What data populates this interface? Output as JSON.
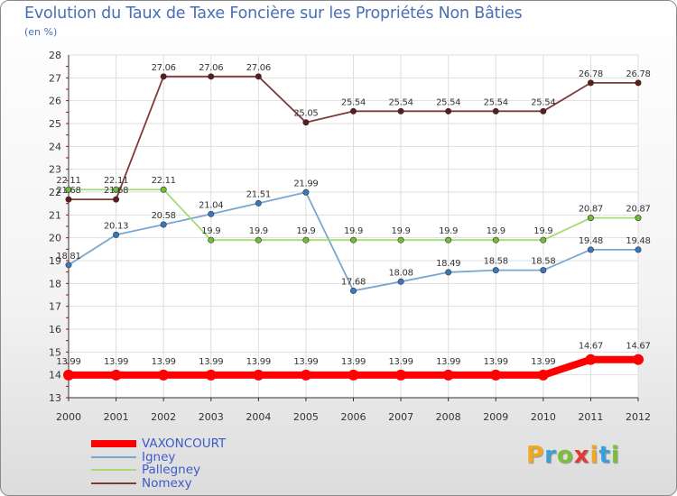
{
  "header": {
    "title": "Evolution du Taux de Taxe Foncière sur les Propriétés Non Bâties",
    "unit": "(en %)"
  },
  "logo": {
    "text": "Proxiti",
    "letters": [
      "P",
      "r",
      "o",
      "x",
      "i",
      "t",
      "i"
    ],
    "colors": [
      "#f2a81d",
      "#3aa0d8",
      "#7bbf3b",
      "#e53935",
      "#f2a81d",
      "#3aa0d8",
      "#7bbf3b"
    ]
  },
  "chart_data": {
    "type": "line",
    "title": "Evolution du Taux de Taxe Foncière sur les Propriétés Non Bâties",
    "ylabel": "(en %)",
    "xlabel": "",
    "categories": [
      "2000",
      "2001",
      "2002",
      "2003",
      "2004",
      "2005",
      "2006",
      "2007",
      "2008",
      "2009",
      "2010",
      "2011",
      "2012"
    ],
    "ylim": [
      13,
      28
    ],
    "yticks": [
      "13",
      "14",
      "15",
      "16",
      "17",
      "18",
      "19",
      "20",
      "21",
      "22",
      "23",
      "24",
      "25",
      "26",
      "27",
      "28"
    ],
    "grid": true,
    "series": [
      {
        "name": "VAXONCOURT",
        "color": "#ff0000",
        "marker": "#ff0000",
        "weight": "thick",
        "values": [
          13.99,
          13.99,
          13.99,
          13.99,
          13.99,
          13.99,
          13.99,
          13.99,
          13.99,
          13.99,
          13.99,
          14.67,
          14.67
        ],
        "labels": [
          "13.99",
          "13.99",
          "13.99",
          "13.99",
          "13.99",
          "13.99",
          "13.99",
          "13.99",
          "13.99",
          "13.99",
          "13.99",
          "14.67",
          "14.67"
        ]
      },
      {
        "name": "Igney",
        "color": "#7aa7cf",
        "marker": "#3a78bd",
        "weight": "thin",
        "values": [
          18.81,
          20.13,
          20.58,
          21.04,
          21.51,
          21.99,
          17.68,
          18.08,
          18.49,
          18.58,
          18.58,
          19.48,
          19.48
        ],
        "labels": [
          "18.81",
          "20.13",
          "20.58",
          "21.04",
          "21.51",
          "21.99",
          "17.68",
          "18.08",
          "18.49",
          "18.58",
          "18.58",
          "19.48",
          "19.48"
        ]
      },
      {
        "name": "Pallegney",
        "color": "#a3dc74",
        "marker": "#6fbe3a",
        "weight": "thin",
        "values": [
          22.11,
          22.11,
          22.11,
          19.9,
          19.9,
          19.9,
          19.9,
          19.9,
          19.9,
          19.9,
          19.9,
          20.87,
          20.87
        ],
        "labels": [
          "22.11",
          "22.11",
          "22.11",
          "19.9",
          "19.9",
          "19.9",
          "19.9",
          "19.9",
          "19.9",
          "19.9",
          "19.9",
          "20.87",
          "20.87"
        ]
      },
      {
        "name": "Nomexy",
        "color": "#7f3a3a",
        "marker": "#5c1c1c",
        "weight": "thin",
        "values": [
          21.68,
          21.68,
          27.06,
          27.06,
          27.06,
          25.05,
          25.54,
          25.54,
          25.54,
          25.54,
          25.54,
          26.78,
          26.78
        ],
        "labels": [
          "21.68",
          "21.68",
          "27.06",
          "27.06",
          "27.06",
          "25.05",
          "25.54",
          "25.54",
          "25.54",
          "25.54",
          "25.54",
          "26.78",
          "26.78"
        ]
      }
    ]
  }
}
